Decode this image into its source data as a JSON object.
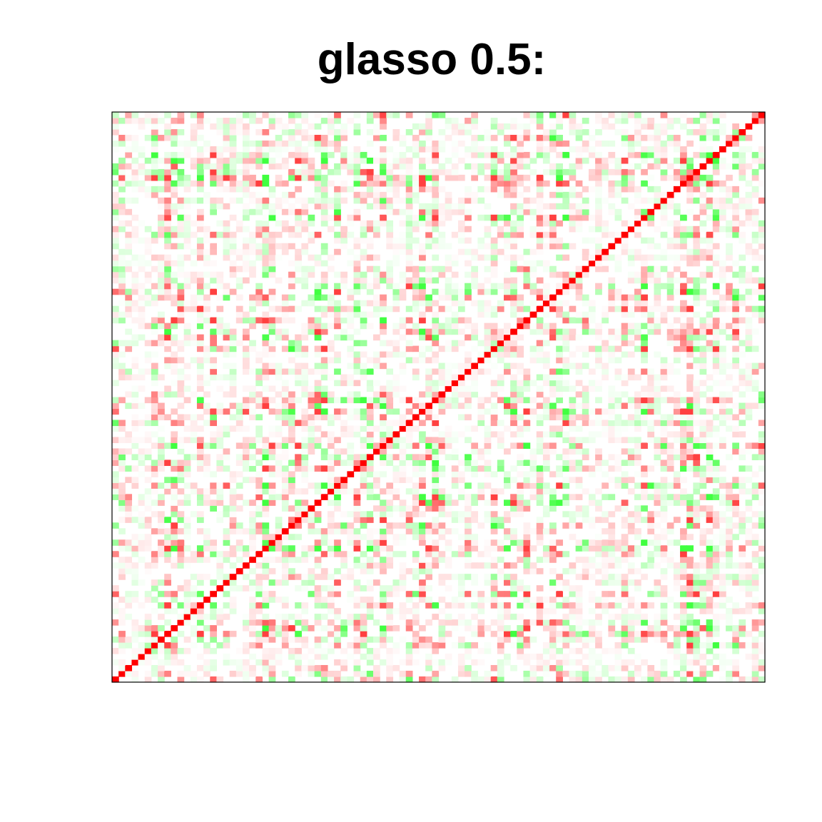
{
  "chart_data": {
    "type": "heatmap",
    "title": "glasso 0.5:",
    "xlabel": "",
    "ylabel": "",
    "matrix_size": 100,
    "value_range": [
      -1,
      1
    ],
    "diagonal_value": 1,
    "colors": {
      "positive": "#ff0000",
      "zero": "#ffffff",
      "negative": "#00ff00",
      "frame": "#000000"
    },
    "axes_visible": false,
    "legend": "none",
    "grid": false
  }
}
